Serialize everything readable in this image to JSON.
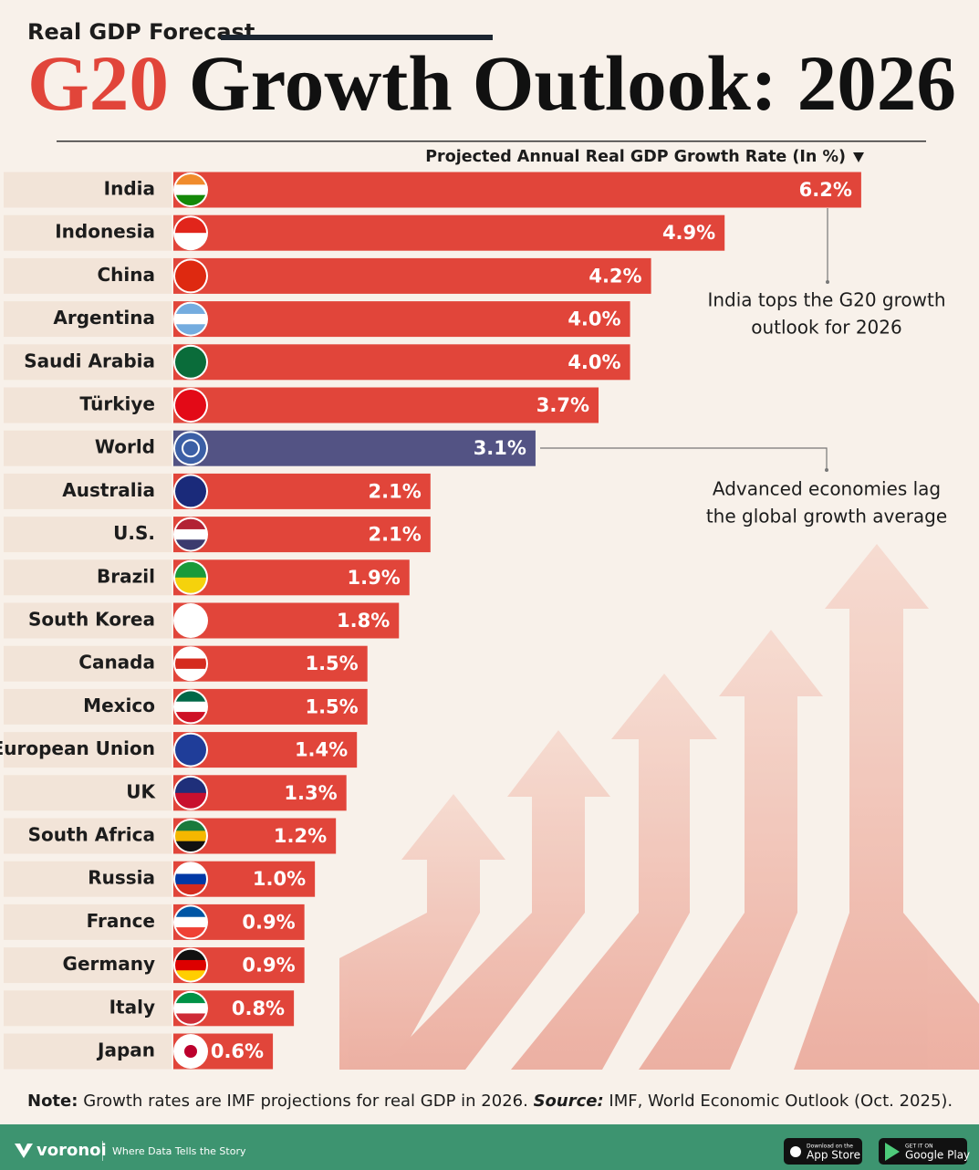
{
  "chart_data": {
    "type": "bar",
    "kicker": "Real GDP Forecast",
    "title_highlight": "G20",
    "title": "Growth Outlook: 2026",
    "axis_label": "Projected Annual Real GDP Growth Rate (In %)",
    "categories": [
      "India",
      "Indonesia",
      "China",
      "Argentina",
      "Saudi Arabia",
      "Türkiye",
      "World",
      "Australia",
      "U.S.",
      "Brazil",
      "South Korea",
      "Canada",
      "Mexico",
      "European Union",
      "UK",
      "South Africa",
      "Russia",
      "France",
      "Germany",
      "Italy",
      "Japan"
    ],
    "values": [
      6.2,
      4.9,
      4.2,
      4.0,
      4.0,
      3.7,
      3.1,
      2.1,
      2.1,
      1.9,
      1.8,
      1.5,
      1.5,
      1.4,
      1.3,
      1.2,
      1.0,
      0.9,
      0.9,
      0.8,
      0.6
    ],
    "value_labels": [
      "6.2%",
      "4.9%",
      "4.2%",
      "4.0%",
      "4.0%",
      "3.7%",
      "3.1%",
      "2.1%",
      "2.1%",
      "1.9%",
      "1.8%",
      "1.5%",
      "1.5%",
      "1.4%",
      "1.3%",
      "1.2%",
      "1.0%",
      "0.9%",
      "0.9%",
      "0.8%",
      "0.6%"
    ],
    "colors": [
      "#e1453a",
      "#e1453a",
      "#e1453a",
      "#e1453a",
      "#e1453a",
      "#e1453a",
      "#535384",
      "#e1453a",
      "#e1453a",
      "#e1453a",
      "#e1453a",
      "#e1453a",
      "#e1453a",
      "#e1453a",
      "#e1453a",
      "#e1453a",
      "#e1453a",
      "#e1453a",
      "#e1453a",
      "#e1453a",
      "#e1453a"
    ],
    "xlim": [
      0,
      7
    ],
    "annotations": [
      {
        "lines": [
          "India tops the G20 growth",
          "outlook for 2026"
        ]
      },
      {
        "lines": [
          "Advanced economies lag",
          "the global growth average"
        ]
      }
    ],
    "note_label": "Note:",
    "note": "Growth rates are IMF projections for real GDP in 2026.",
    "source_label": "Source:",
    "source": "IMF, World Economic Outlook (Oct. 2025).",
    "footer": {
      "brand": "voronoi",
      "tagline": "Where Data Tells the Story",
      "app_store_small": "Download on the",
      "app_store": "App Store",
      "google_small": "GET IT ON",
      "google": "Google Play"
    }
  }
}
